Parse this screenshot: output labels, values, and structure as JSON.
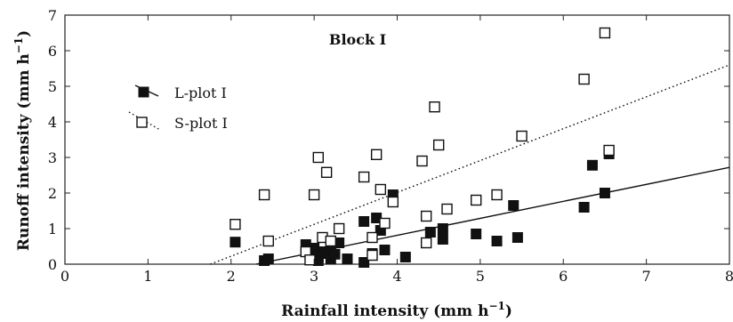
{
  "chart_data": {
    "type": "scatter",
    "annotation": "Block I",
    "xlabel": "Rainfall intensity (mm h",
    "ylabel": "Runoff intensity (mm h",
    "unit_exponent": "−1",
    "unit_close": ")",
    "xlim": [
      0,
      8
    ],
    "ylim": [
      0,
      7
    ],
    "x_ticks": [
      0,
      1,
      2,
      3,
      4,
      5,
      6,
      7,
      8
    ],
    "y_ticks": [
      0,
      1,
      2,
      3,
      4,
      5,
      6,
      7
    ],
    "legend_position": "upper-left",
    "series": [
      {
        "name": "L-plot I",
        "marker": "filled-square",
        "line_style": "solid",
        "fit_line": [
          [
            2.3,
            0
          ],
          [
            8,
            2.72
          ]
        ],
        "points": [
          [
            2.05,
            0.62
          ],
          [
            2.4,
            0.1
          ],
          [
            2.45,
            0.15
          ],
          [
            2.9,
            0.55
          ],
          [
            2.95,
            0.3
          ],
          [
            3.0,
            0.45
          ],
          [
            3.05,
            0.1
          ],
          [
            3.05,
            0.2
          ],
          [
            3.1,
            0.35
          ],
          [
            3.15,
            0.3
          ],
          [
            3.2,
            0.15
          ],
          [
            3.2,
            0.55
          ],
          [
            3.25,
            0.28
          ],
          [
            3.3,
            0.6
          ],
          [
            3.4,
            0.15
          ],
          [
            3.6,
            1.2
          ],
          [
            3.6,
            0.05
          ],
          [
            3.7,
            0.3
          ],
          [
            3.75,
            1.3
          ],
          [
            3.8,
            0.95
          ],
          [
            3.85,
            0.4
          ],
          [
            3.95,
            1.95
          ],
          [
            4.1,
            0.2
          ],
          [
            4.4,
            0.9
          ],
          [
            4.55,
            1.0
          ],
          [
            4.55,
            0.7
          ],
          [
            4.95,
            0.85
          ],
          [
            5.2,
            0.65
          ],
          [
            5.4,
            1.65
          ],
          [
            5.45,
            0.75
          ],
          [
            6.25,
            1.6
          ],
          [
            6.35,
            2.78
          ],
          [
            6.5,
            2.0
          ],
          [
            6.55,
            3.1
          ]
        ]
      },
      {
        "name": "S-plot I",
        "marker": "open-square",
        "line_style": "dotted",
        "fit_line": [
          [
            1.75,
            0
          ],
          [
            8,
            5.6
          ]
        ],
        "points": [
          [
            2.05,
            1.12
          ],
          [
            2.4,
            1.95
          ],
          [
            2.45,
            0.65
          ],
          [
            2.9,
            0.35
          ],
          [
            2.95,
            0.12
          ],
          [
            3.0,
            1.95
          ],
          [
            3.05,
            3.0
          ],
          [
            3.1,
            0.75
          ],
          [
            3.15,
            2.58
          ],
          [
            3.2,
            0.65
          ],
          [
            3.3,
            1.0
          ],
          [
            3.6,
            2.45
          ],
          [
            3.7,
            0.25
          ],
          [
            3.7,
            0.75
          ],
          [
            3.75,
            3.08
          ],
          [
            3.8,
            2.1
          ],
          [
            3.85,
            1.15
          ],
          [
            3.95,
            1.75
          ],
          [
            4.3,
            2.9
          ],
          [
            4.35,
            0.6
          ],
          [
            4.35,
            1.35
          ],
          [
            4.45,
            4.42
          ],
          [
            4.5,
            3.35
          ],
          [
            4.6,
            1.55
          ],
          [
            4.95,
            1.8
          ],
          [
            5.2,
            1.95
          ],
          [
            5.5,
            3.6
          ],
          [
            6.25,
            5.2
          ],
          [
            6.5,
            6.5
          ],
          [
            6.55,
            3.2
          ]
        ]
      }
    ]
  }
}
